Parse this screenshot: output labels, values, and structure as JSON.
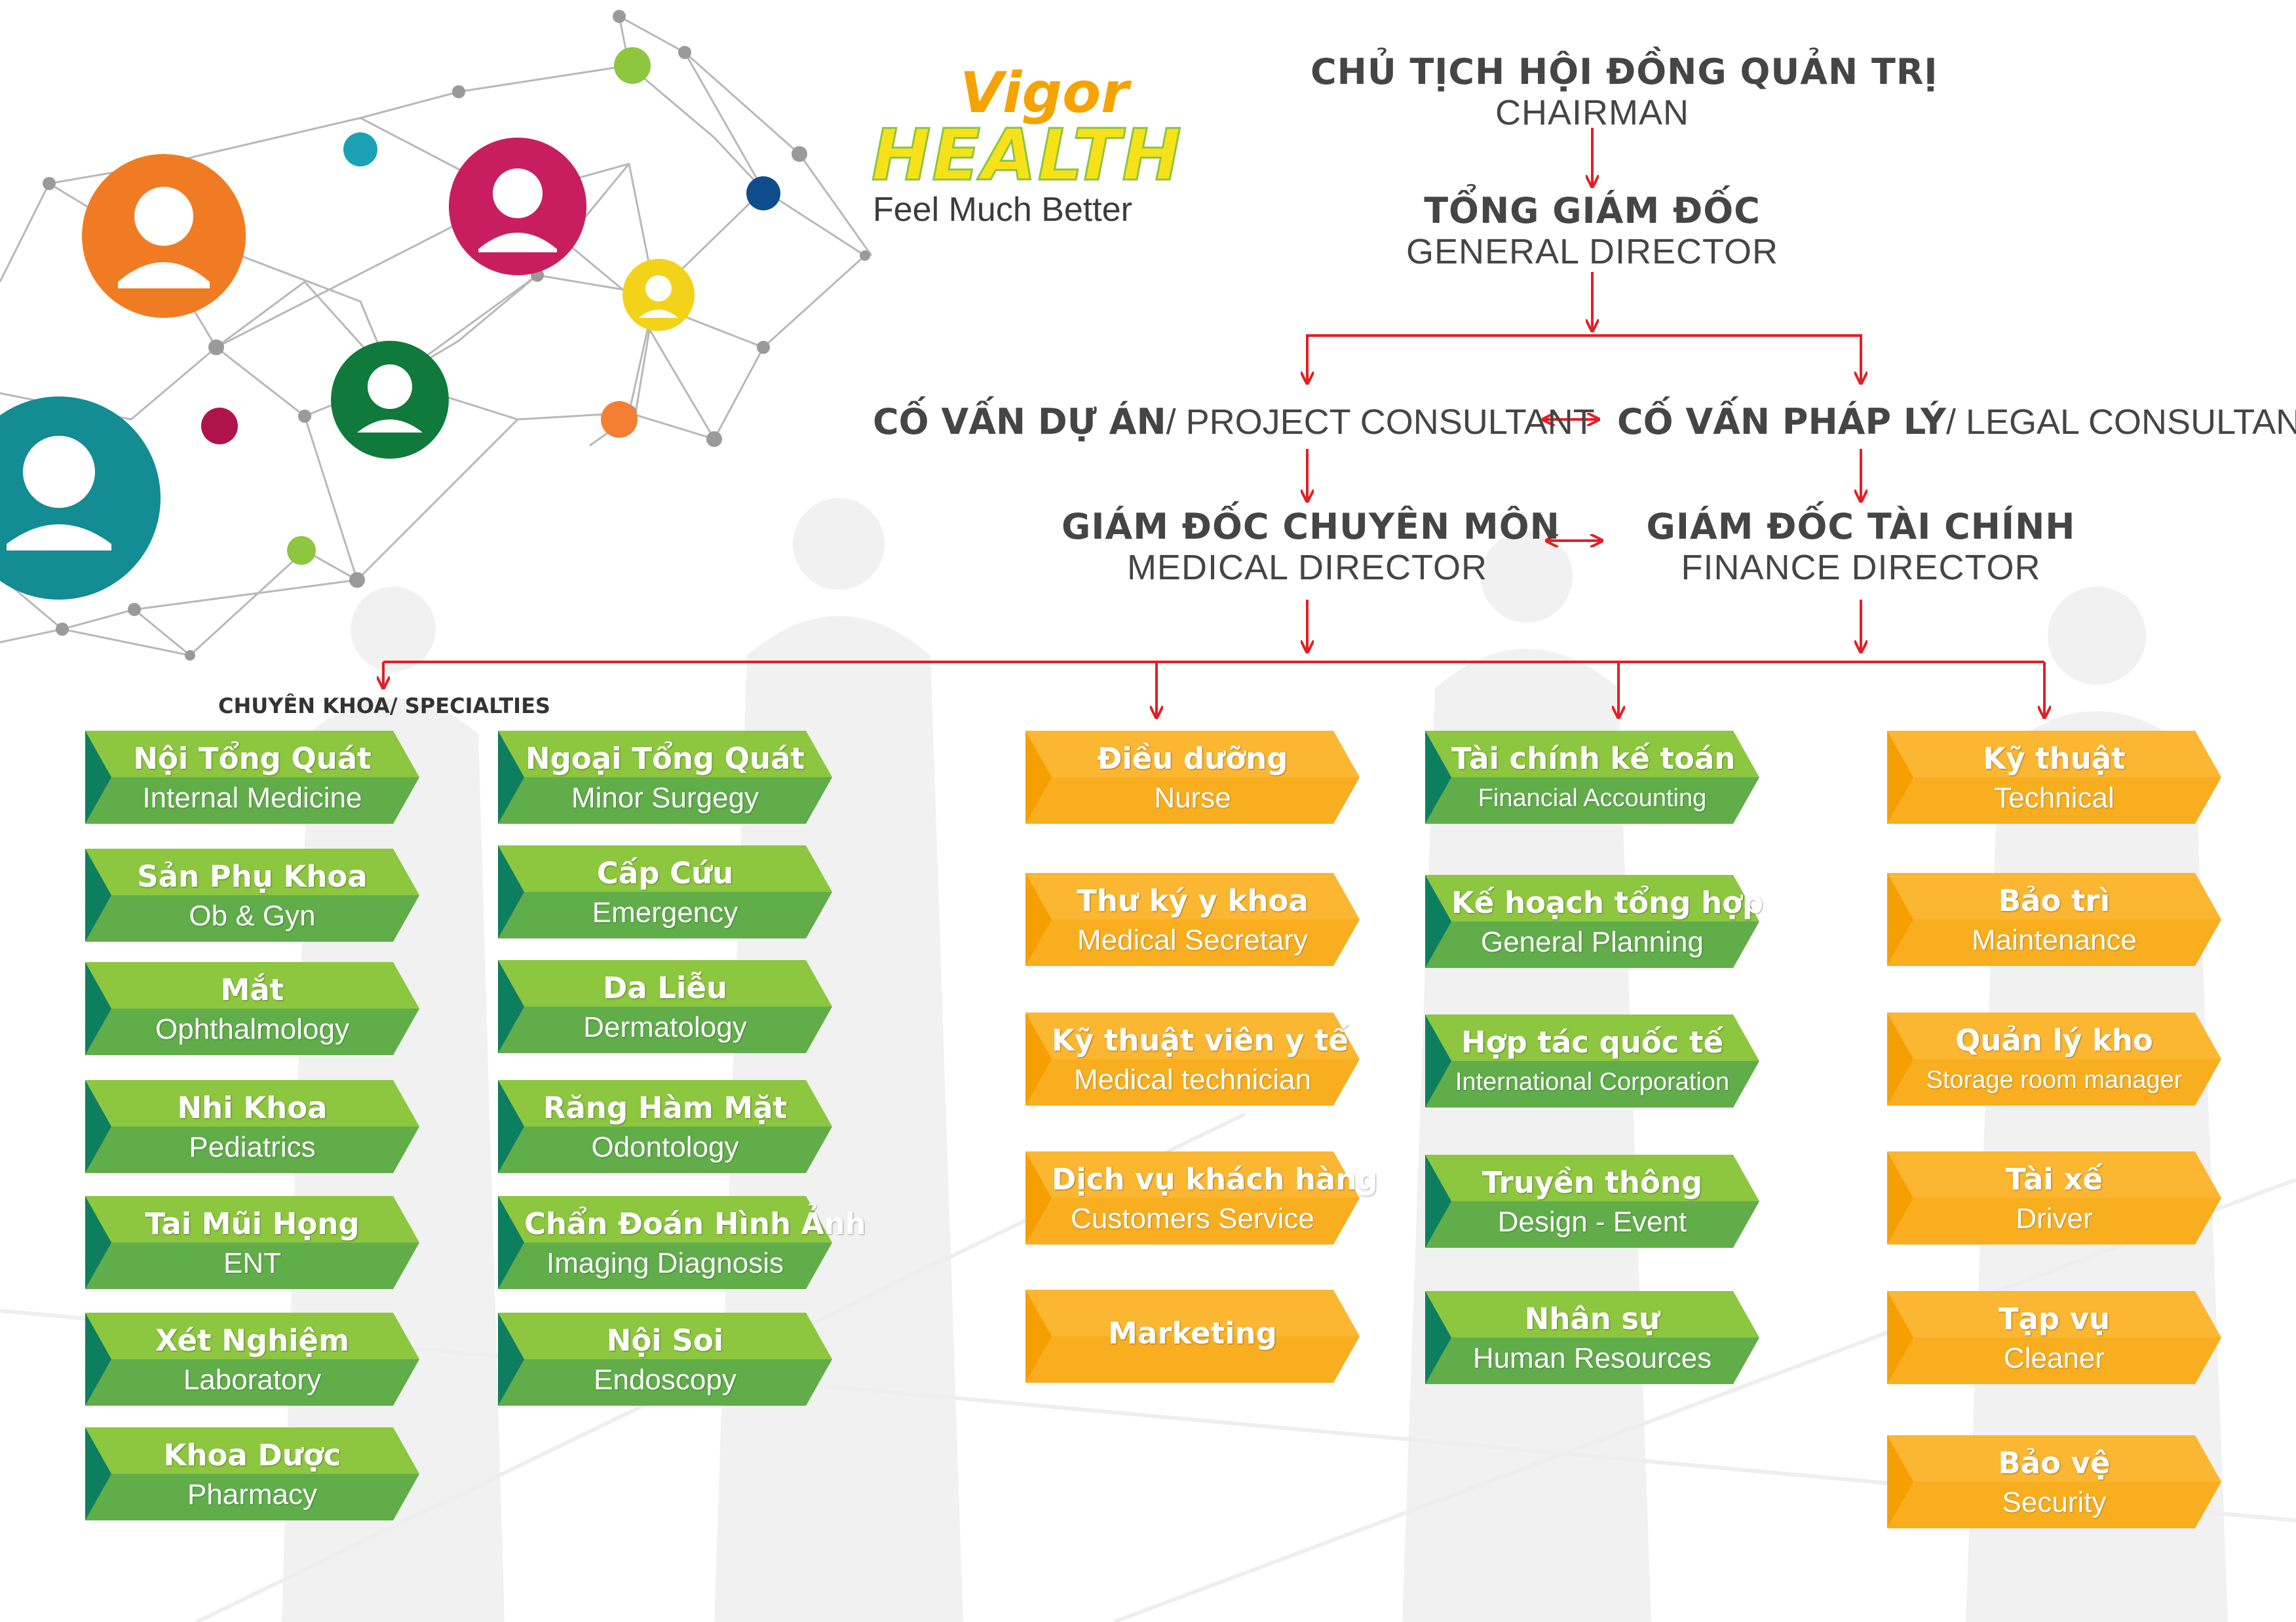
{
  "logo": {
    "line1": "Vigor",
    "line2": "HEALTH",
    "tagline": "Feel Much Better"
  },
  "colors": {
    "line": "#e31e24",
    "green_light": "#8dc63f",
    "green_dark": "#0d7f5f",
    "orange_light": "#fbb632",
    "orange_dark": "#f5a000",
    "text": "#454545"
  },
  "org": {
    "chairman": {
      "vi": "CHỦ TỊCH HỘI ĐỒNG QUẢN TRỊ",
      "en": "CHAIRMAN"
    },
    "general_director": {
      "vi": "TỔNG GIÁM ĐỐC",
      "en": "GENERAL DIRECTOR"
    },
    "project_consultant": {
      "vi": "CỐ VẤN DỰ ÁN",
      "en": "/ PROJECT CONSULTANT"
    },
    "legal_consultant": {
      "vi": "CỐ VẤN PHÁP LÝ",
      "en": "/ LEGAL CONSULTANT"
    },
    "medical_director": {
      "vi": "GIÁM ĐỐC CHUYÊN MÔN",
      "en": "MEDICAL DIRECTOR"
    },
    "finance_director": {
      "vi": "GIÁM ĐỐC TÀI CHÍNH",
      "en": "FINANCE DIRECTOR"
    }
  },
  "specialties_title": "CHUYÊN KHOA/ SPECIALTIES",
  "specialties_col1": [
    {
      "vi": "Nội Tổng Quát",
      "en": "Internal Medicine"
    },
    {
      "vi": "Sản Phụ Khoa",
      "en": "Ob & Gyn"
    },
    {
      "vi": "Mắt",
      "en": "Ophthalmology"
    },
    {
      "vi": "Nhi Khoa",
      "en": "Pediatrics"
    },
    {
      "vi": "Tai Mũi Họng",
      "en": "ENT"
    },
    {
      "vi": "Xét Nghiệm",
      "en": "Laboratory"
    },
    {
      "vi": "Khoa Dược",
      "en": "Pharmacy"
    }
  ],
  "specialties_col2": [
    {
      "vi": "Ngoại Tổng Quát",
      "en": "Minor Surgegy"
    },
    {
      "vi": "Cấp Cứu",
      "en": "Emergency"
    },
    {
      "vi": "Da Liễu",
      "en": "Dermatology"
    },
    {
      "vi": "Răng Hàm Mặt",
      "en": "Odontology"
    },
    {
      "vi": "Chẩn Đoán Hình Ảnh",
      "en": "Imaging Diagnosis"
    },
    {
      "vi": "Nội Soi",
      "en": "Endoscopy"
    }
  ],
  "medical_support": [
    {
      "vi": "Điều dưỡng",
      "en": "Nurse"
    },
    {
      "vi": "Thư ký y khoa",
      "en": "Medical Secretary"
    },
    {
      "vi": "Kỹ thuật viên y tế",
      "en": "Medical technician"
    },
    {
      "vi": "Dịch vụ khách hàng",
      "en": "Customers Service"
    },
    {
      "vi": "Marketing",
      "en": ""
    }
  ],
  "finance_dept": [
    {
      "vi": "Tài chính kế toán",
      "en": "Financial Accounting"
    },
    {
      "vi": "Kế hoạch tổng hợp",
      "en": "General Planning"
    },
    {
      "vi": "Hợp tác quốc tế",
      "en": "International Corporation"
    },
    {
      "vi": "Truyền thông",
      "en": "Design - Event"
    },
    {
      "vi": "Nhân sự",
      "en": "Human Resources"
    }
  ],
  "operations": [
    {
      "vi": "Kỹ thuật",
      "en": "Technical"
    },
    {
      "vi": "Bảo trì",
      "en": "Maintenance"
    },
    {
      "vi": "Quản lý kho",
      "en": "Storage room manager"
    },
    {
      "vi": "Tài xế",
      "en": "Driver"
    },
    {
      "vi": "Tạp vụ",
      "en": "Cleaner"
    },
    {
      "vi": "Bảo vệ",
      "en": "Security"
    }
  ]
}
